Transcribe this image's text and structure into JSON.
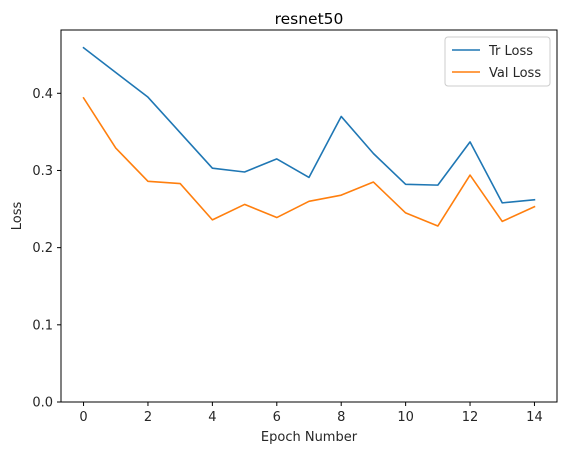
{
  "chart_data": {
    "type": "line",
    "title": "resnet50",
    "xlabel": "Epoch Number",
    "ylabel": "Loss",
    "x": [
      0,
      1,
      2,
      3,
      4,
      5,
      6,
      7,
      8,
      9,
      10,
      11,
      12,
      13,
      14
    ],
    "xlim": [
      -0.7,
      14.7
    ],
    "ylim": [
      0,
      0.482
    ],
    "xticks": [
      0,
      2,
      4,
      6,
      8,
      10,
      12,
      14
    ],
    "yticks": [
      0.0,
      0.1,
      0.2,
      0.3,
      0.4
    ],
    "ytick_labels": [
      "0.0",
      "0.1",
      "0.2",
      "0.3",
      "0.4"
    ],
    "grid": false,
    "legend_position": "top-right",
    "series": [
      {
        "name": "Tr Loss",
        "color": "#1f77b4",
        "values": [
          0.459,
          0.427,
          0.395,
          0.349,
          0.303,
          0.298,
          0.315,
          0.291,
          0.37,
          0.322,
          0.282,
          0.281,
          0.337,
          0.258,
          0.262
        ]
      },
      {
        "name": "Val Loss",
        "color": "#ff7f0e",
        "values": [
          0.394,
          0.329,
          0.286,
          0.283,
          0.236,
          0.256,
          0.239,
          0.26,
          0.268,
          0.285,
          0.245,
          0.228,
          0.294,
          0.234,
          0.253
        ]
      }
    ]
  }
}
